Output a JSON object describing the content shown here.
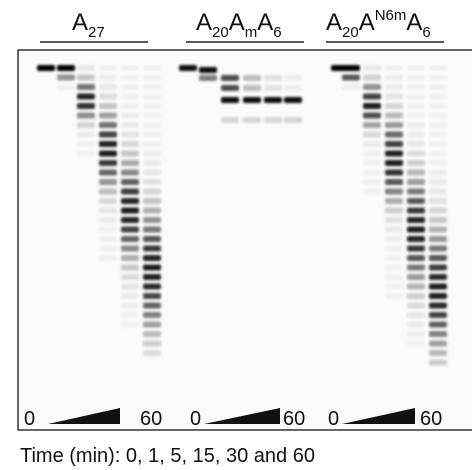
{
  "lanes": [
    {
      "title": [
        "A",
        "27"
      ],
      "time_start": "0",
      "time_end": "60"
    },
    {
      "title": [
        "A",
        "20",
        "A",
        "m",
        "A",
        "6"
      ],
      "time_start": "0",
      "time_end": "60"
    },
    {
      "title": [
        "A",
        "20",
        "A",
        "N6m",
        "A",
        "6"
      ],
      "time_start": "0",
      "time_end": "60"
    }
  ],
  "caption": "Time (min): 0, 1, 5, 15, 30 and 60"
}
